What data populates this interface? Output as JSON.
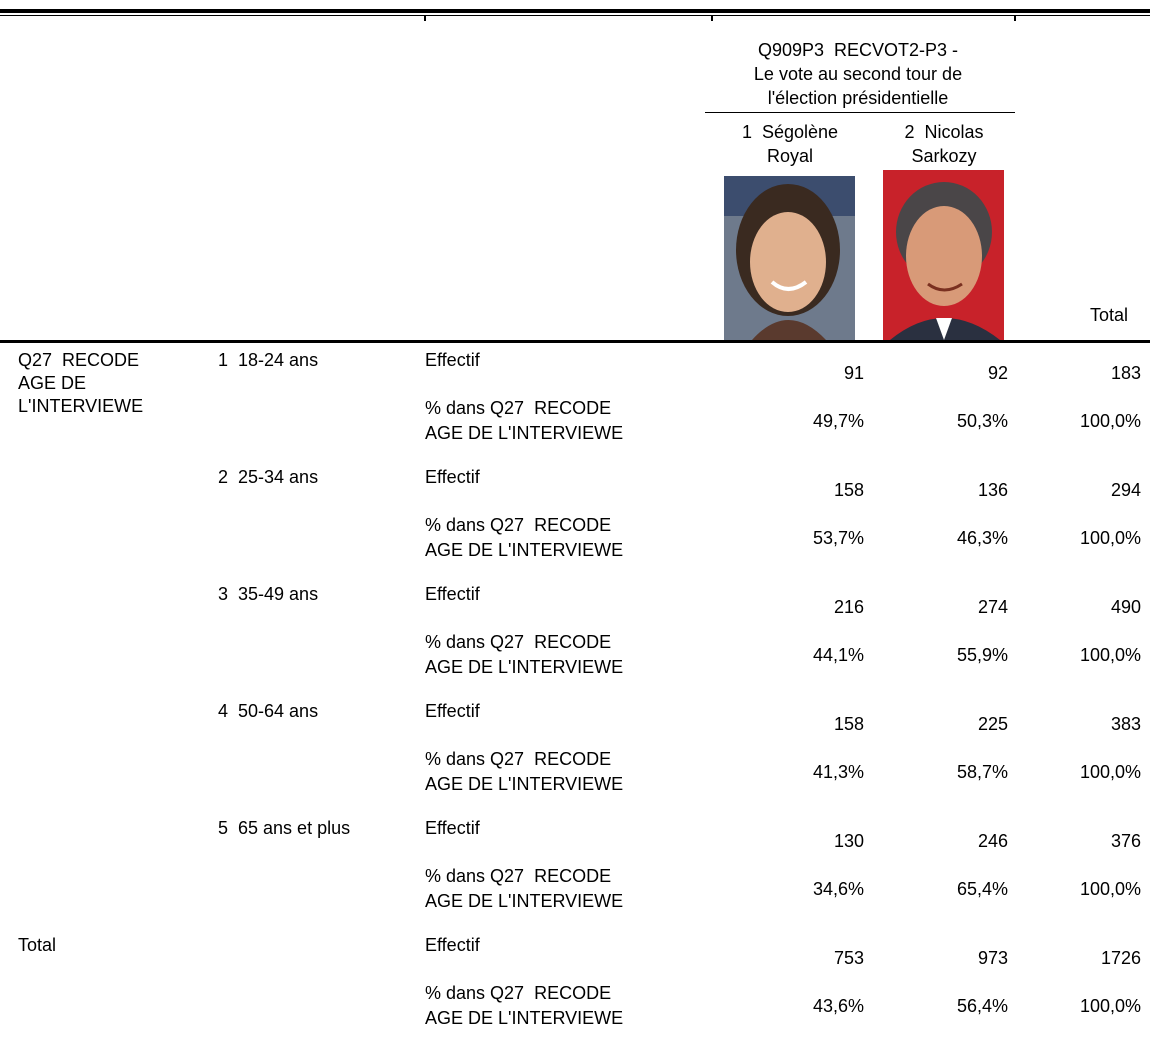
{
  "header": {
    "title_lines": [
      "Q909P3  RECVOT2-P3 -",
      "Le vote au second tour de",
      "l'élection présidentielle"
    ],
    "columns": [
      [
        "1  Ségolène",
        "Royal"
      ],
      [
        "2  Nicolas",
        "Sarkozy"
      ],
      [
        "Total"
      ]
    ]
  },
  "row_variable": [
    "Q27  RECODE",
    "AGE DE",
    "L'INTERVIEWE"
  ],
  "groups": [
    {
      "label": "1  18-24 ans",
      "rows": [
        {
          "measure": [
            "Effectif"
          ],
          "cells": [
            "91",
            "92",
            "183"
          ]
        },
        {
          "measure": [
            "% dans Q27  RECODE",
            "AGE DE L'INTERVIEWE"
          ],
          "cells": [
            "49,7%",
            "50,3%",
            "100,0%"
          ]
        }
      ]
    },
    {
      "label": "2  25-34 ans",
      "rows": [
        {
          "measure": [
            "Effectif"
          ],
          "cells": [
            "158",
            "136",
            "294"
          ]
        },
        {
          "measure": [
            "% dans Q27  RECODE",
            "AGE DE L'INTERVIEWE"
          ],
          "cells": [
            "53,7%",
            "46,3%",
            "100,0%"
          ]
        }
      ]
    },
    {
      "label": "3  35-49 ans",
      "rows": [
        {
          "measure": [
            "Effectif"
          ],
          "cells": [
            "216",
            "274",
            "490"
          ]
        },
        {
          "measure": [
            "% dans Q27  RECODE",
            "AGE DE L'INTERVIEWE"
          ],
          "cells": [
            "44,1%",
            "55,9%",
            "100,0%"
          ]
        }
      ]
    },
    {
      "label": "4  50-64 ans",
      "rows": [
        {
          "measure": [
            "Effectif"
          ],
          "cells": [
            "158",
            "225",
            "383"
          ]
        },
        {
          "measure": [
            "% dans Q27  RECODE",
            "AGE DE L'INTERVIEWE"
          ],
          "cells": [
            "41,3%",
            "58,7%",
            "100,0%"
          ]
        }
      ]
    },
    {
      "label": "5  65 ans et plus",
      "rows": [
        {
          "measure": [
            "Effectif"
          ],
          "cells": [
            "130",
            "246",
            "376"
          ]
        },
        {
          "measure": [
            "% dans Q27  RECODE",
            "AGE DE L'INTERVIEWE"
          ],
          "cells": [
            "34,6%",
            "65,4%",
            "100,0%"
          ]
        }
      ]
    }
  ],
  "total": {
    "label": "Total",
    "rows": [
      {
        "measure": [
          "Effectif"
        ],
        "cells": [
          "753",
          "973",
          "1726"
        ]
      },
      {
        "measure": [
          "% dans Q27  RECODE",
          "AGE DE L'INTERVIEWE"
        ],
        "cells": [
          "43,6%",
          "56,4%",
          "100,0%"
        ]
      }
    ]
  }
}
